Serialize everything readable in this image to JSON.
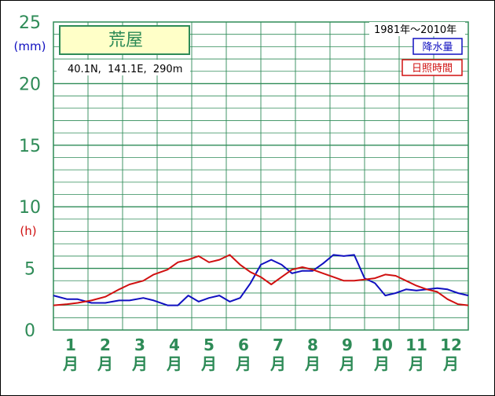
{
  "station": {
    "name": "荒屋",
    "coords": "40.1N,  141.1E,  290m",
    "period": "1981年〜2010年"
  },
  "legend": {
    "precip": "降水量",
    "sunshine": "日照時間"
  },
  "units": {
    "precip": "(mm)",
    "sunshine": "(h)"
  },
  "colors": {
    "precip": "#1010c0",
    "sunshine": "#d01010",
    "grid": "#2e8b57"
  },
  "chart_data": {
    "type": "line",
    "ylim": [
      0,
      25
    ],
    "yticks": [
      0,
      5,
      10,
      15,
      20,
      25
    ],
    "months": [
      "1",
      "2",
      "3",
      "4",
      "5",
      "6",
      "7",
      "8",
      "9",
      "10",
      "11",
      "12"
    ],
    "month_suffix": "月",
    "x_range": [
      0.5,
      12.5
    ],
    "series": [
      {
        "name": "降水量",
        "x": [
          0.5,
          0.9,
          1.2,
          1.6,
          2.0,
          2.4,
          2.7,
          3.1,
          3.4,
          3.8,
          4.1,
          4.4,
          4.7,
          5.0,
          5.3,
          5.6,
          5.9,
          6.2,
          6.5,
          6.8,
          7.1,
          7.4,
          7.7,
          8.0,
          8.3,
          8.6,
          8.9,
          9.2,
          9.5,
          9.8,
          10.1,
          10.4,
          10.7,
          11.0,
          11.3,
          11.6,
          11.9,
          12.2,
          12.5
        ],
        "values": [
          2.8,
          2.5,
          2.5,
          2.2,
          2.2,
          2.4,
          2.4,
          2.6,
          2.4,
          2.0,
          2.0,
          2.8,
          2.3,
          2.6,
          2.8,
          2.3,
          2.6,
          3.8,
          5.3,
          5.7,
          5.3,
          4.6,
          4.8,
          4.8,
          5.4,
          6.1,
          6.0,
          6.1,
          4.2,
          3.8,
          2.8,
          3.0,
          3.3,
          3.2,
          3.3,
          3.4,
          3.3,
          3.0,
          2.8
        ]
      },
      {
        "name": "日照時間",
        "x": [
          0.5,
          0.9,
          1.2,
          1.6,
          2.0,
          2.4,
          2.7,
          3.1,
          3.4,
          3.8,
          4.1,
          4.4,
          4.7,
          5.0,
          5.3,
          5.6,
          5.9,
          6.2,
          6.5,
          6.8,
          7.1,
          7.4,
          7.7,
          8.0,
          8.3,
          8.6,
          8.9,
          9.2,
          9.5,
          9.8,
          10.1,
          10.4,
          10.7,
          11.0,
          11.3,
          11.6,
          11.9,
          12.2,
          12.5
        ],
        "values": [
          2.0,
          2.1,
          2.2,
          2.4,
          2.7,
          3.3,
          3.7,
          4.0,
          4.5,
          4.9,
          5.5,
          5.7,
          6.0,
          5.5,
          5.7,
          6.1,
          5.3,
          4.7,
          4.3,
          3.7,
          4.3,
          4.9,
          5.1,
          4.9,
          4.6,
          4.3,
          4.0,
          4.0,
          4.1,
          4.2,
          4.5,
          4.4,
          4.0,
          3.6,
          3.3,
          3.1,
          2.5,
          2.1,
          2.0
        ]
      }
    ]
  }
}
